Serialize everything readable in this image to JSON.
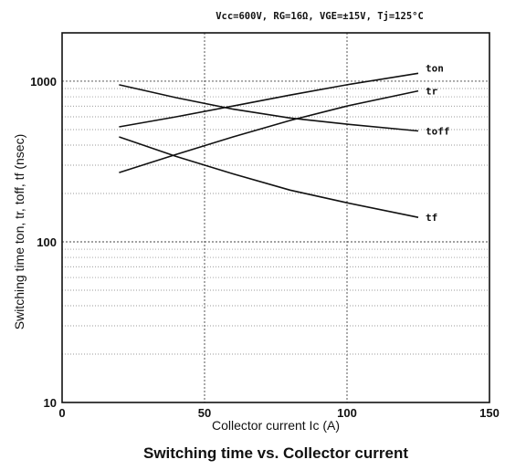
{
  "chart_data": {
    "type": "line",
    "conditions": "Vcc=600V, RG=16Ω, VGE=±15V, Tj=125°C",
    "title": "Switching time vs. Collector current",
    "xlabel": "Collector current    Ic (A)",
    "ylabel": "Switching time    ton, tr, toff, tf (nsec)",
    "xlim": [
      0,
      150
    ],
    "ylim": [
      10,
      2000
    ],
    "y_scale": "log",
    "grid": true,
    "x_ticks": [
      "0",
      "50",
      "100",
      "150"
    ],
    "y_ticks": [
      "10",
      "100",
      "1000"
    ],
    "series": [
      {
        "name": "ton",
        "x": [
          20,
          40,
          60,
          80,
          100,
          125
        ],
        "y": [
          520,
          600,
          700,
          820,
          950,
          1120
        ]
      },
      {
        "name": "tr",
        "x": [
          20,
          40,
          60,
          80,
          100,
          125
        ],
        "y": [
          270,
          350,
          450,
          570,
          700,
          870
        ]
      },
      {
        "name": "toff",
        "x": [
          20,
          40,
          60,
          80,
          100,
          125
        ],
        "y": [
          950,
          790,
          670,
          590,
          540,
          490
        ]
      },
      {
        "name": "tf",
        "x": [
          20,
          40,
          60,
          80,
          100,
          125
        ],
        "y": [
          450,
          340,
          265,
          210,
          175,
          142
        ]
      }
    ]
  }
}
